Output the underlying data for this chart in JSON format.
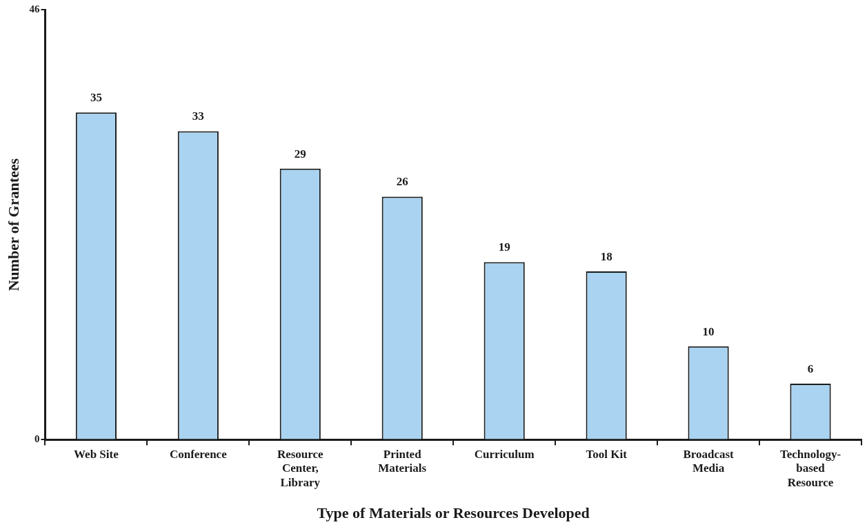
{
  "chart_data": {
    "type": "bar",
    "xlabel": "Type of Materials or Resources Developed",
    "ylabel": "Number of Grantees",
    "categories": [
      "Web Site",
      "Conference",
      "Resource Center, Library",
      "Printed Materials",
      "Curriculum",
      "Tool Kit",
      "Broadcast Media",
      "Technology-based Resource"
    ],
    "values": [
      35,
      33,
      29,
      26,
      19,
      18,
      10,
      6
    ],
    "color": "#a9d3f0",
    "ylim": [
      0,
      46
    ],
    "yticks": [
      0,
      46
    ],
    "data_labels": true,
    "grid": false,
    "legend": false
  }
}
